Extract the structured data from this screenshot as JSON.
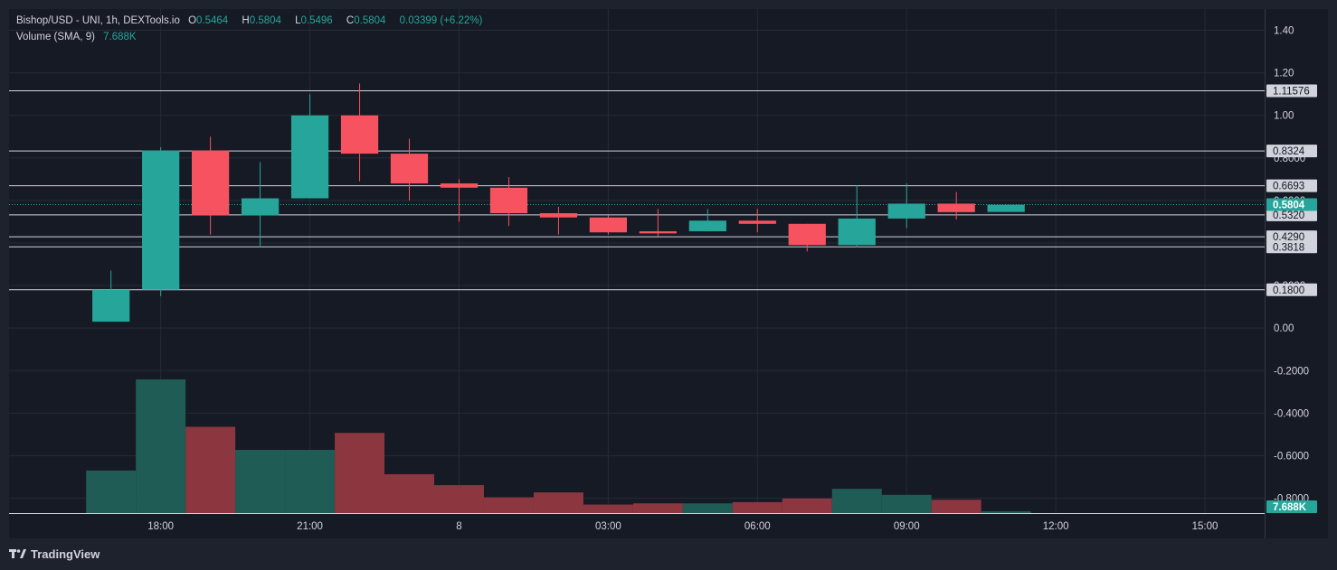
{
  "legend": {
    "symbol": "Bishop/USD - UNI, 1h, DEXTools.io",
    "o_key": "O",
    "o_val": "0.5464",
    "h_key": "H",
    "h_val": "0.5804",
    "l_key": "L",
    "l_val": "0.5496",
    "c_key": "C",
    "c_val": "0.5804",
    "change": "0.03399 (+6.22%)",
    "volume_label": "Volume (SMA, 9)",
    "volume_value": "7.688K"
  },
  "footer": {
    "brand": "TradingView",
    "logo_icon": "tradingview-logo-icon"
  },
  "colors": {
    "up": "#26a69a",
    "down": "#f7525f",
    "vol_up": "#1f5c55",
    "vol_down": "#8c3640",
    "grid": "#262a35",
    "text": "#d1d4dc"
  },
  "chart_data": {
    "type": "candlestick",
    "y_ticks": [
      "1.40",
      "1.20",
      "1.00",
      "0.8000",
      "0.6000",
      "0.4000",
      "0.2000",
      "0.00",
      "-0.2000",
      "-0.4000",
      "-0.6000",
      "-0.8000"
    ],
    "y_tick_values": [
      1.4,
      1.2,
      1.0,
      0.8,
      0.6,
      0.4,
      0.2,
      0.0,
      -0.2,
      -0.4,
      -0.6,
      -0.8
    ],
    "ylim": [
      -0.87,
      1.5
    ],
    "x_ticks": [
      {
        "label": "18:00",
        "t": 2
      },
      {
        "label": "21:00",
        "t": 5
      },
      {
        "label": "8",
        "t": 8
      },
      {
        "label": "03:00",
        "t": 11
      },
      {
        "label": "06:00",
        "t": 14
      },
      {
        "label": "09:00",
        "t": 17
      },
      {
        "label": "12:00",
        "t": 20
      },
      {
        "label": "15:00",
        "t": 23
      }
    ],
    "xlim": [
      -1.05,
      24.2
    ],
    "candles": [
      {
        "t": 1,
        "o": 0.03,
        "h": 0.27,
        "l": 0.03,
        "c": 0.18
      },
      {
        "t": 2,
        "o": 0.18,
        "h": 0.85,
        "l": 0.15,
        "c": 0.835
      },
      {
        "t": 3,
        "o": 0.835,
        "h": 0.9,
        "l": 0.44,
        "c": 0.53
      },
      {
        "t": 4,
        "o": 0.53,
        "h": 0.78,
        "l": 0.38,
        "c": 0.61
      },
      {
        "t": 5,
        "o": 0.61,
        "h": 1.1,
        "l": 0.61,
        "c": 1.0
      },
      {
        "t": 6,
        "o": 1.0,
        "h": 1.15,
        "l": 0.69,
        "c": 0.82
      },
      {
        "t": 7,
        "o": 0.82,
        "h": 0.89,
        "l": 0.6,
        "c": 0.68
      },
      {
        "t": 8,
        "o": 0.68,
        "h": 0.7,
        "l": 0.5,
        "c": 0.66
      },
      {
        "t": 9,
        "o": 0.66,
        "h": 0.71,
        "l": 0.48,
        "c": 0.54
      },
      {
        "t": 10,
        "o": 0.54,
        "h": 0.57,
        "l": 0.44,
        "c": 0.52
      },
      {
        "t": 11,
        "o": 0.52,
        "h": 0.53,
        "l": 0.44,
        "c": 0.45
      },
      {
        "t": 12,
        "o": 0.455,
        "h": 0.56,
        "l": 0.43,
        "c": 0.445
      },
      {
        "t": 13,
        "o": 0.455,
        "h": 0.56,
        "l": 0.455,
        "c": 0.505
      },
      {
        "t": 14,
        "o": 0.505,
        "h": 0.56,
        "l": 0.45,
        "c": 0.49
      },
      {
        "t": 15,
        "o": 0.49,
        "h": 0.49,
        "l": 0.36,
        "c": 0.39
      },
      {
        "t": 16,
        "o": 0.39,
        "h": 0.67,
        "l": 0.38,
        "c": 0.515
      },
      {
        "t": 17,
        "o": 0.515,
        "h": 0.68,
        "l": 0.47,
        "c": 0.585
      },
      {
        "t": 18,
        "o": 0.585,
        "h": 0.64,
        "l": 0.51,
        "c": 0.545
      },
      {
        "t": 19,
        "o": 0.546,
        "h": 0.58,
        "l": 0.55,
        "c": 0.58
      }
    ],
    "volume": {
      "label": "Volume (SMA, 9)",
      "max": 11.0,
      "values": [
        3.5,
        11.0,
        7.1,
        5.2,
        5.2,
        6.6,
        3.2,
        2.3,
        1.3,
        1.7,
        0.7,
        0.8,
        0.8,
        0.9,
        1.2,
        2.0,
        1.5,
        1.1,
        0.15
      ],
      "directions": [
        "up",
        "up",
        "down",
        "up",
        "up",
        "down",
        "down",
        "down",
        "down",
        "down",
        "down",
        "down",
        "up",
        "down",
        "down",
        "up",
        "up",
        "down",
        "up"
      ],
      "last_value_label": "7.688K"
    },
    "horizontal_lines": [
      {
        "label": "1.11576",
        "value": 1.11576
      },
      {
        "label": "0.8324",
        "value": 0.8324
      },
      {
        "label": "0.6693",
        "value": 0.6693
      },
      {
        "label": "0.5320",
        "value": 0.532
      },
      {
        "label": "0.4290",
        "value": 0.429
      },
      {
        "label": "0.3818",
        "value": 0.3818
      },
      {
        "label": "0.1800",
        "value": 0.18
      }
    ],
    "last_price": {
      "label": "0.5804",
      "value": 0.5804
    }
  }
}
